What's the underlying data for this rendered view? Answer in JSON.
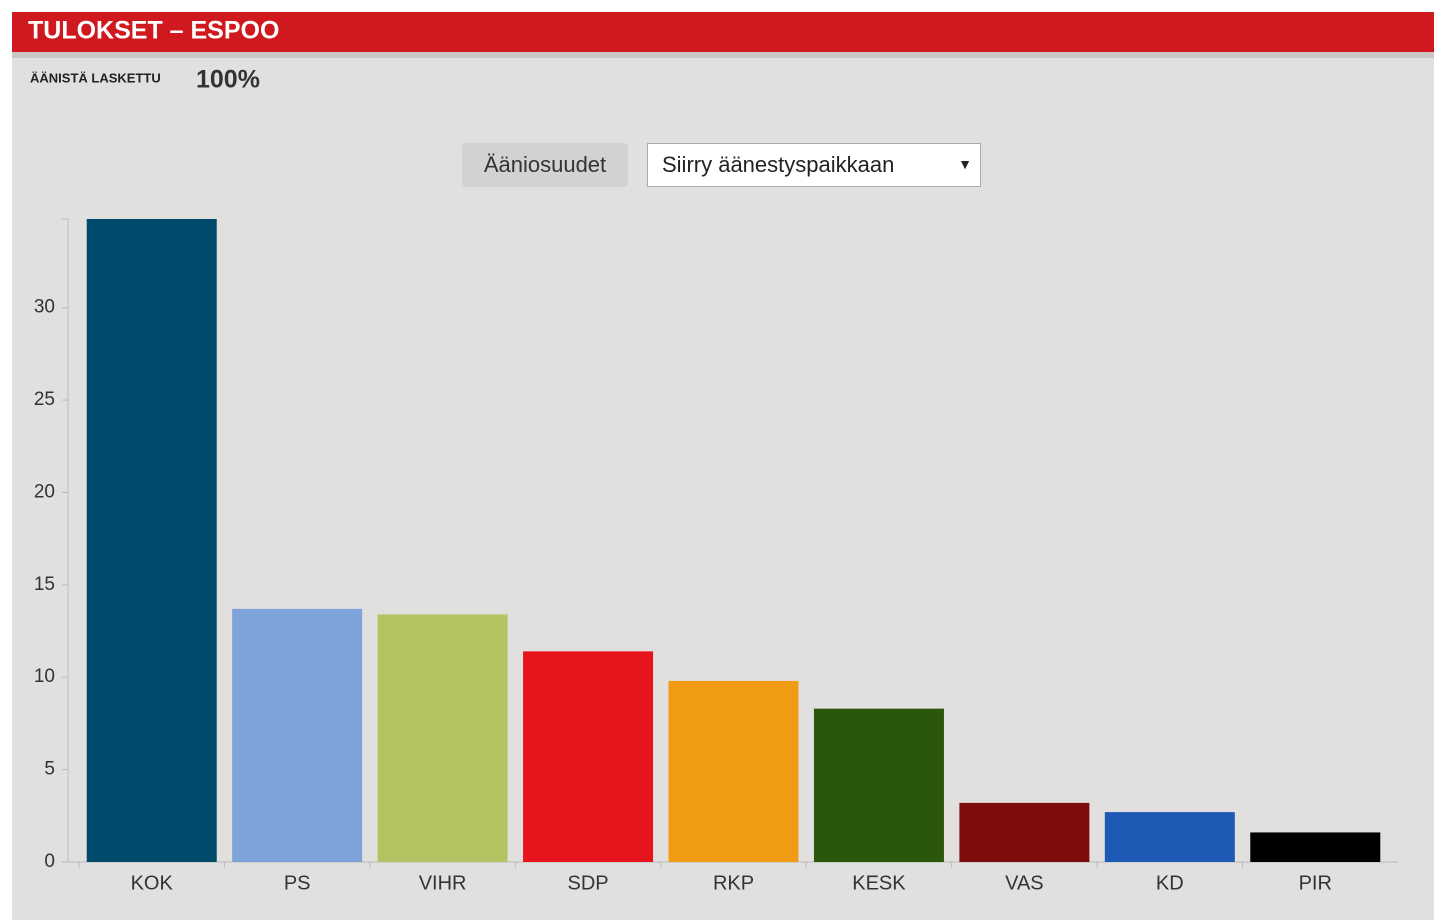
{
  "header": {
    "title": "TULOKSET – ESPOO"
  },
  "status": {
    "label": "ÄÄNISTÄ LASKETTU",
    "value": "100%"
  },
  "controls": {
    "button": "Ääniosuudet",
    "select": "Siirry äänestyspaikkaan"
  },
  "chart_data": {
    "type": "bar",
    "categories": [
      "KOK",
      "PS",
      "VIHR",
      "SDP",
      "RKP",
      "KESK",
      "VAS",
      "KD",
      "PIR"
    ],
    "values": [
      34.8,
      13.7,
      13.4,
      11.4,
      9.8,
      8.3,
      3.2,
      2.7,
      1.6
    ],
    "colors": [
      "#004a6b",
      "#7ea3d9",
      "#b2c462",
      "#e8141c",
      "#f09b13",
      "#2a570b",
      "#800d0d",
      "#1d5ab5",
      "#000000"
    ],
    "ylim": [
      0,
      34.8
    ],
    "yticks": [
      0,
      5,
      10,
      15,
      20,
      25,
      30
    ],
    "grid": false
  }
}
